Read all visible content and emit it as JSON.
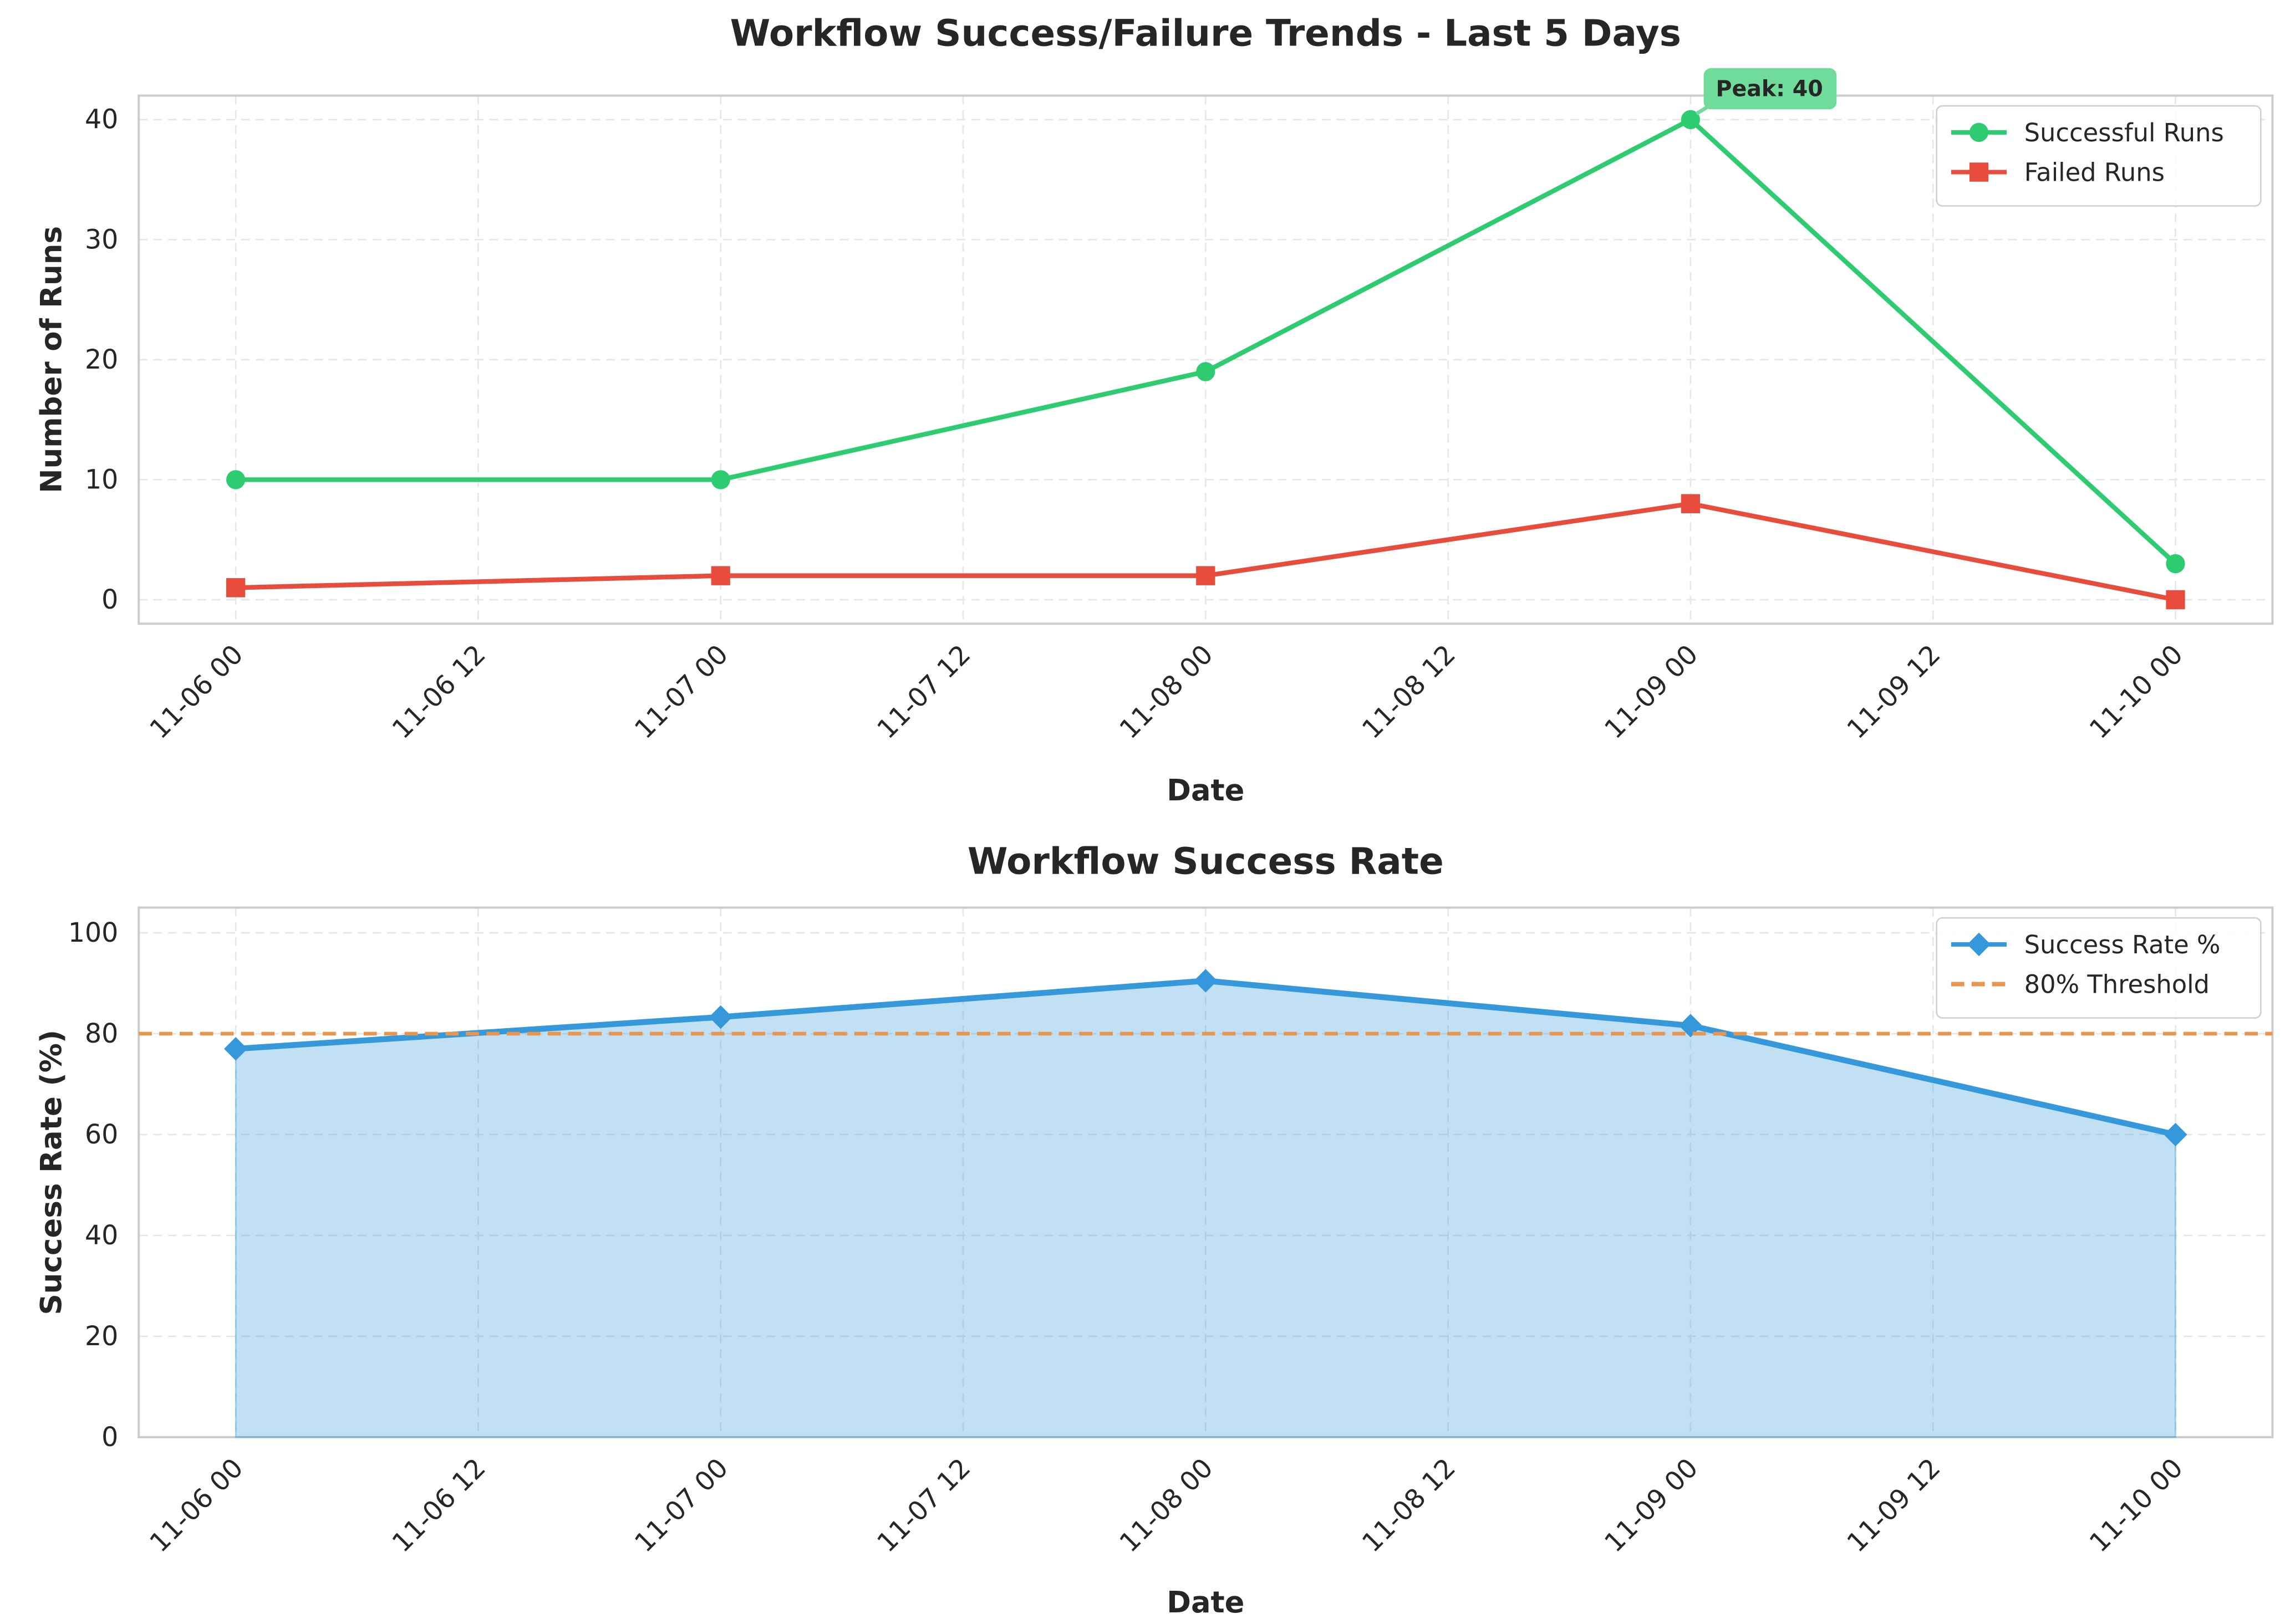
{
  "chart_data": [
    {
      "type": "line",
      "title": "Workflow Success/Failure Trends - Last 5 Days",
      "x_label": "Date",
      "y_label": "Number of Runs",
      "x": [
        "11-06 00",
        "11-07 00",
        "11-08 00",
        "11-09 00",
        "11-10 00"
      ],
      "xticks": [
        "11-06 00",
        "11-06 12",
        "11-07 00",
        "11-07 12",
        "11-08 00",
        "11-08 12",
        "11-09 00",
        "11-09 12",
        "11-10 00"
      ],
      "ylim": [
        -2,
        42
      ],
      "yticks": [
        0,
        10,
        20,
        30,
        40
      ],
      "grid": true,
      "legend": "upper right",
      "series": [
        {
          "name": "Successful Runs",
          "color": "#2ecc71",
          "marker": "circle",
          "values": [
            10,
            10,
            19,
            40,
            3
          ]
        },
        {
          "name": "Failed Runs",
          "color": "#e74c3c",
          "marker": "square",
          "values": [
            1,
            2,
            2,
            8,
            0
          ]
        }
      ],
      "annotation": {
        "text": "Peak: 40",
        "color": "#6fdc9b"
      }
    },
    {
      "type": "area",
      "title": "Workflow Success Rate",
      "x_label": "Date",
      "y_label": "Success Rate (%)",
      "x": [
        "11-06 00",
        "11-07 00",
        "11-08 00",
        "11-09 00",
        "11-10 00"
      ],
      "xticks": [
        "11-06 00",
        "11-06 12",
        "11-07 00",
        "11-07 12",
        "11-08 00",
        "11-08 12",
        "11-09 00",
        "11-09 12",
        "11-10 00"
      ],
      "ylim": [
        0,
        105
      ],
      "yticks": [
        0,
        20,
        40,
        60,
        80,
        100
      ],
      "grid": true,
      "legend": "upper right",
      "series": [
        {
          "name": "Success Rate %",
          "color": "#3498db",
          "marker": "diamond",
          "values": [
            77,
            83.3,
            90.5,
            81.6,
            60
          ]
        }
      ],
      "threshold": {
        "name": "80% Threshold",
        "value": 80,
        "color": "#e8964f"
      }
    }
  ]
}
